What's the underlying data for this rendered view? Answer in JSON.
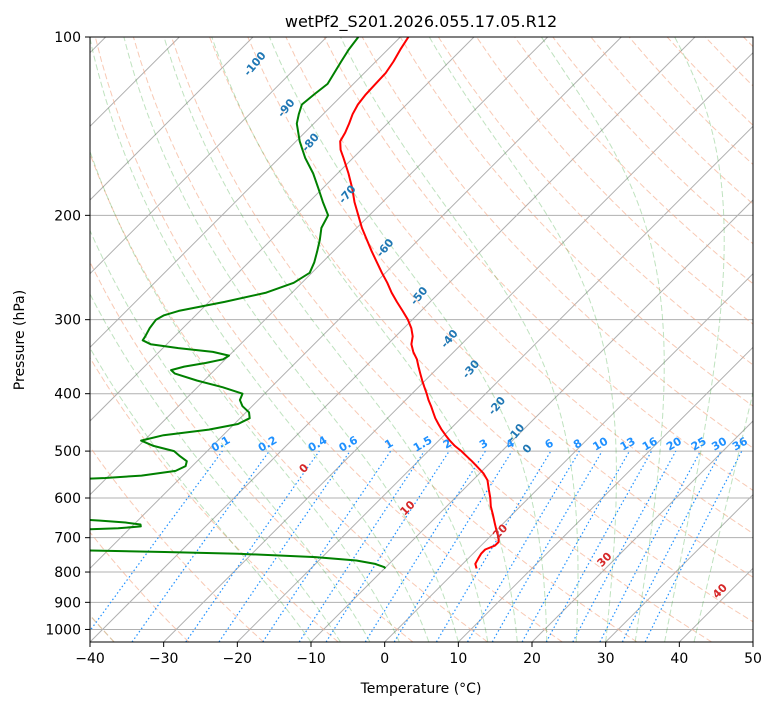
{
  "chart_data": {
    "type": "skew-t",
    "title": "wetPf2_S201.2026.055.17.05.R12",
    "xlabel": "Temperature (°C)",
    "ylabel": "Pressure (hPa)",
    "xlim": [
      -40,
      50
    ],
    "ylim": [
      1050,
      100
    ],
    "y_scale": "log",
    "skew_factor": 1.0,
    "grid": true,
    "x_ticks": [
      -40,
      -30,
      -20,
      -10,
      0,
      10,
      20,
      30,
      40,
      50
    ],
    "y_ticks": [
      100,
      200,
      300,
      400,
      500,
      600,
      700,
      800,
      900,
      1000
    ],
    "series": [
      {
        "kind": "temperature",
        "color": "#ff0000",
        "pressure": [
          789,
          775,
          760,
          745,
          733,
          722,
          712,
          700,
          680,
          660,
          640,
          620,
          600,
          580,
          560,
          545,
          530,
          520,
          510,
          500,
          490,
          480,
          470,
          460,
          450,
          440,
          430,
          420,
          410,
          400,
          390,
          380,
          370,
          360,
          350,
          340,
          330,
          320,
          310,
          300,
          290,
          280,
          270,
          260,
          250,
          240,
          230,
          220,
          210,
          200,
          190,
          180,
          170,
          160,
          155,
          150,
          145,
          140,
          135,
          130,
          125,
          120,
          115,
          110,
          105,
          100
        ],
        "temperature": [
          2.5,
          1.7,
          1.4,
          1.1,
          1.1,
          1.9,
          1.9,
          1.3,
          0.0,
          -1.3,
          -2.6,
          -4.0,
          -5.2,
          -6.6,
          -8.0,
          -9.5,
          -11.4,
          -12.7,
          -14.1,
          -15.5,
          -17.1,
          -18.5,
          -19.8,
          -21.1,
          -22.3,
          -23.5,
          -24.6,
          -25.7,
          -26.9,
          -28.0,
          -29.2,
          -30.4,
          -31.6,
          -32.8,
          -34.0,
          -35.5,
          -36.8,
          -37.7,
          -39.0,
          -40.6,
          -42.5,
          -44.5,
          -46.5,
          -48.4,
          -50.5,
          -52.6,
          -54.8,
          -57.0,
          -59.3,
          -61.5,
          -63.8,
          -66.0,
          -68.5,
          -71.3,
          -72.8,
          -74.0,
          -74.5,
          -75.2,
          -76.0,
          -76.6,
          -76.9,
          -77.0,
          -77.1,
          -77.6,
          -78.3,
          -78.9
        ]
      },
      {
        "kind": "dewpoint",
        "color": "#008000",
        "pressure": [
          789,
          785,
          775,
          765,
          755,
          745,
          740,
          735,
          730,
          725,
          720,
          710,
          700,
          690,
          680,
          675,
          670,
          665,
          660,
          655,
          650,
          640,
          630,
          620,
          610,
          605,
          600,
          590,
          580,
          575,
          570,
          565,
          560,
          555,
          550,
          540,
          530,
          520,
          510,
          500,
          490,
          480,
          470,
          460,
          450,
          440,
          430,
          420,
          410,
          400,
          390,
          380,
          370,
          365,
          360,
          355,
          350,
          345,
          340,
          335,
          330,
          325,
          320,
          310,
          300,
          295,
          290,
          280,
          270,
          260,
          250,
          240,
          230,
          220,
          210,
          200,
          190,
          180,
          170,
          160,
          150,
          140,
          135,
          130,
          125,
          120,
          115,
          110,
          105,
          100
        ],
        "temperature": [
          -9.9,
          -10.2,
          -11.9,
          -14.9,
          -20.9,
          -31.9,
          -42.1,
          -54.5,
          -67.7,
          -76.1,
          -79.6,
          -80.2,
          -79.2,
          -72.5,
          -59.0,
          -51.6,
          -48.8,
          -49.1,
          -51.4,
          -55.1,
          -59.6,
          -67.4,
          -72.2,
          -71.9,
          -65.8,
          -62.4,
          -62.5,
          -67.9,
          -74.9,
          -77.9,
          -79.1,
          -76.6,
          -67.9,
          -60.2,
          -55.6,
          -51.6,
          -50.9,
          -51.4,
          -53.0,
          -54.5,
          -58.0,
          -60.4,
          -58.1,
          -52.7,
          -49.5,
          -48.7,
          -49.6,
          -51.3,
          -52.5,
          -53.0,
          -56.6,
          -61.0,
          -64.9,
          -65.9,
          -64.6,
          -62.2,
          -60.3,
          -60.0,
          -62.7,
          -67.9,
          -72.2,
          -73.8,
          -74.0,
          -74.5,
          -74.8,
          -74.3,
          -72.9,
          -67.9,
          -63.5,
          -61.1,
          -60.3,
          -61.1,
          -62.2,
          -63.4,
          -64.8,
          -65.6,
          -68.1,
          -70.6,
          -73.3,
          -76.5,
          -79.5,
          -82.3,
          -83.3,
          -84.2,
          -83.9,
          -83.5,
          -84.1,
          -84.7,
          -85.3,
          -85.7
        ]
      }
    ],
    "mixing_ratio_lines": [
      "0.1",
      "0.2",
      "0.4",
      "0.6",
      "1",
      "1.5",
      "2",
      "3",
      "4",
      "6",
      "8",
      "10",
      "13",
      "16",
      "20",
      "25",
      "30",
      "36"
    ],
    "dry_adiabat_labels": [
      "0",
      "10",
      "20",
      "30",
      "40"
    ],
    "moist_adiabat_labels": [
      "-100",
      "-90",
      "-80",
      "-70",
      "-60",
      "-50",
      "-40",
      "-30",
      "-20",
      "-10",
      "0"
    ]
  }
}
